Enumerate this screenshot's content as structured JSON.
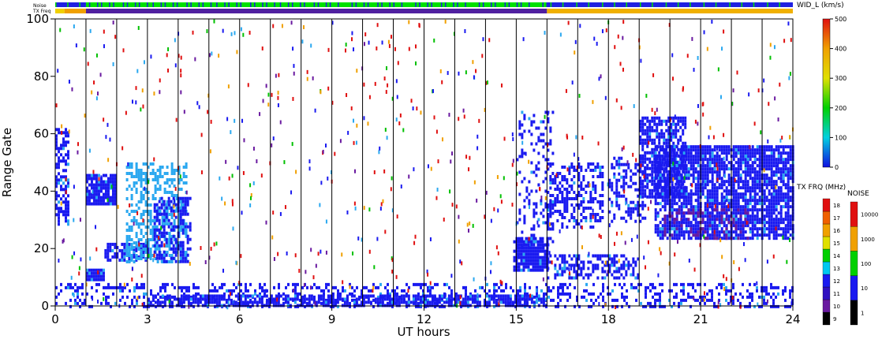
{
  "chart_data": {
    "type": "heatmap",
    "top_bars": {
      "noise_label": "Noise",
      "txfreq_label": "TX Freq",
      "noise_segments": [
        {
          "start": 0.0,
          "end": 1.0,
          "color": "#2020e0"
        },
        {
          "start": 1.0,
          "end": 16.0,
          "color": "#00e000"
        },
        {
          "start": 16.0,
          "end": 24.0,
          "color": "#2020e0"
        }
      ],
      "txfreq_segments": [
        {
          "start": 0.0,
          "end": 0.3,
          "color": "#f0d000"
        },
        {
          "start": 0.3,
          "end": 1.0,
          "color": "#f0a000"
        },
        {
          "start": 1.0,
          "end": 16.0,
          "color": "#5020a0"
        },
        {
          "start": 16.0,
          "end": 24.0,
          "color": "#f0b000"
        }
      ]
    },
    "main": {
      "xlabel": "UT hours",
      "ylabel": "Range Gate",
      "xlim": [
        0,
        24
      ],
      "ylim": [
        0,
        100
      ],
      "xticks": [
        "0",
        "3",
        "6",
        "9",
        "12",
        "15",
        "18",
        "21",
        "24"
      ],
      "xtick_values": [
        0,
        3,
        6,
        9,
        12,
        15,
        18,
        21,
        24
      ],
      "yticks": [
        "0",
        "20",
        "40",
        "60",
        "80",
        "100"
      ],
      "ytick_values": [
        0,
        20,
        40,
        60,
        80,
        100
      ],
      "scan_lines_ut": [
        1,
        2,
        3,
        4,
        5,
        6,
        7,
        8,
        9,
        10,
        11,
        12,
        13,
        14,
        15,
        16,
        17,
        18,
        19,
        20,
        21,
        22,
        23
      ],
      "scatter_regions": [
        {
          "x": [
            1.0,
            2.0
          ],
          "y": [
            36,
            46
          ],
          "color": "#1a1af0",
          "density": 0.85
        },
        {
          "x": [
            0.0,
            0.4
          ],
          "y": [
            28,
            62
          ],
          "color": "#1a1af0",
          "density": 0.5
        },
        {
          "x": [
            1.0,
            1.6
          ],
          "y": [
            9,
            13
          ],
          "color": "#1a1af0",
          "density": 0.9
        },
        {
          "x": [
            1.6,
            3.0
          ],
          "y": [
            16,
            22
          ],
          "color": "#1a1af0",
          "density": 0.6
        },
        {
          "x": [
            2.3,
            4.3
          ],
          "y": [
            15,
            50
          ],
          "color": "#2aa8f0",
          "density": 0.45
        },
        {
          "x": [
            3.2,
            4.4
          ],
          "y": [
            15,
            38
          ],
          "color": "#1a1af0",
          "density": 0.55
        },
        {
          "x": [
            0.0,
            24.0
          ],
          "y": [
            0,
            8
          ],
          "color": "#1a1af0",
          "density": 0.3
        },
        {
          "x": [
            3.0,
            16.0
          ],
          "y": [
            0,
            4
          ],
          "color": "#1a1af0",
          "density": 0.7
        },
        {
          "x": [
            14.9,
            16.0
          ],
          "y": [
            12,
            24
          ],
          "color": "#1a1af0",
          "density": 0.9
        },
        {
          "x": [
            15.0,
            16.2
          ],
          "y": [
            20,
            68
          ],
          "color": "#1a1af0",
          "density": 0.25
        },
        {
          "x": [
            16.0,
            19.0
          ],
          "y": [
            10,
            18
          ],
          "color": "#1a1af0",
          "density": 0.5
        },
        {
          "x": [
            16.0,
            17.8
          ],
          "y": [
            28,
            50
          ],
          "color": "#1a1af0",
          "density": 0.45
        },
        {
          "x": [
            18.0,
            19.2
          ],
          "y": [
            30,
            52
          ],
          "color": "#1a1af0",
          "density": 0.35
        },
        {
          "x": [
            19.0,
            20.5
          ],
          "y": [
            38,
            66
          ],
          "color": "#1a1af0",
          "density": 0.7
        },
        {
          "x": [
            19.5,
            24.0
          ],
          "y": [
            24,
            56
          ],
          "color": "#1a1af0",
          "density": 0.78
        },
        {
          "x": [
            19.8,
            22.5
          ],
          "y": [
            24,
            34
          ],
          "color": "#6a1aa0",
          "density": 0.25
        }
      ],
      "random_scatter_colors": [
        "#e01010",
        "#e01010",
        "#e01010",
        "#1a1af0",
        "#1a1af0",
        "#2aa8f0",
        "#00c000",
        "#f0a000",
        "#6a1aa0"
      ]
    },
    "colorbars": {
      "width": {
        "label": "WID_L (km/s)",
        "ticks": [
          "0",
          "100",
          "200",
          "300",
          "400",
          "500"
        ],
        "tick_values": [
          0,
          100,
          200,
          300,
          400,
          500
        ],
        "stops": [
          "#1010e0",
          "#00d0e0",
          "#00d000",
          "#e0e000",
          "#f0a000",
          "#e01010"
        ]
      },
      "txfreq": {
        "label": "TX FRQ (MHz)",
        "ticks": [
          "9",
          "10",
          "11",
          "12",
          "13",
          "14",
          "15",
          "16",
          "17",
          "18"
        ],
        "colors": [
          "#000000",
          "#6a1aa0",
          "#3010c0",
          "#1a1af0",
          "#00c8f0",
          "#00d000",
          "#e0e000",
          "#f0a000",
          "#f06000",
          "#e01010"
        ]
      },
      "noise": {
        "label": "NOISE",
        "ticks": [
          "1",
          "10",
          "100",
          "1000",
          "10000"
        ],
        "colors": [
          "#000000",
          "#1a1af0",
          "#00d000",
          "#f0a000",
          "#e01010"
        ]
      }
    }
  }
}
